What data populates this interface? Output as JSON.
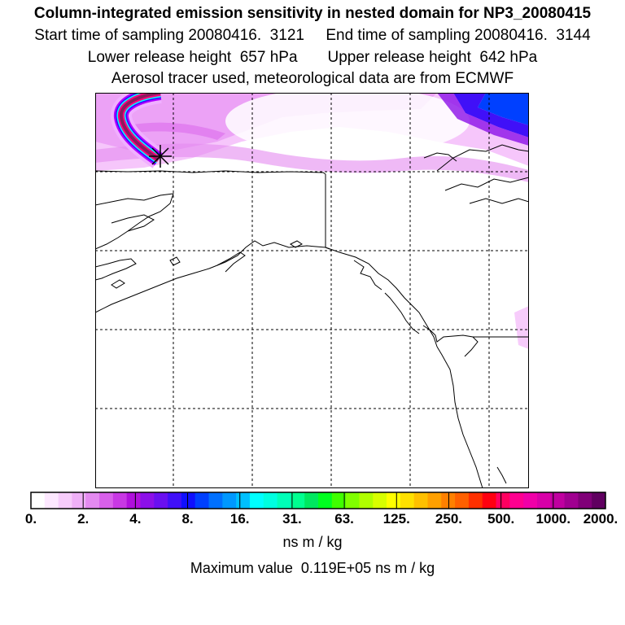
{
  "header": {
    "title": "Column-integrated emission sensitivity in nested domain for NP3_20080415",
    "line2": "Start time of sampling 20080416.  3121     End time of sampling 20080416.  3144",
    "line3": "Lower release height  657 hPa       Upper release height  642 hPa",
    "line4": "Aerosol tracer used, meteorological data are from ECMWF"
  },
  "map": {
    "grid": true,
    "release_marker": "asterisk-marker",
    "coastline_color": "#000000",
    "plume_colors": [
      "#8a1c5c",
      "#ff0080",
      "#00ffff",
      "#3b00ff",
      "#b000ff",
      "#f0b0ff"
    ]
  },
  "colorbar": {
    "tick_labels": [
      "0.",
      "2.",
      "4.",
      "8.",
      "16.",
      "31.",
      "63.",
      "125.",
      "250.",
      "500.",
      "1000.",
      "2000."
    ],
    "colors": [
      "#ffffff",
      "#fde8ff",
      "#f7ccfb",
      "#efb0f7",
      "#e48af0",
      "#d860ea",
      "#c838e4",
      "#b010dc",
      "#8c10e8",
      "#6a10f0",
      "#4010f8",
      "#1010ff",
      "#0040ff",
      "#0070ff",
      "#0098ff",
      "#00c0ff",
      "#00ffff",
      "#00ffe0",
      "#00ffb8",
      "#00ff90",
      "#00e860",
      "#00ff20",
      "#40ff00",
      "#80ff00",
      "#b0ff00",
      "#d8ff00",
      "#ffff00",
      "#ffe000",
      "#ffc000",
      "#ffa000",
      "#ff8000",
      "#ff6000",
      "#ff3000",
      "#ff0010",
      "#ff0060",
      "#ff0090",
      "#f000a8",
      "#d800a8",
      "#c000a0",
      "#a00090",
      "#800078",
      "#600060"
    ],
    "units": "ns m / kg"
  },
  "footer": {
    "max_value": "Maximum value  0.119E+05 ns m / kg"
  }
}
